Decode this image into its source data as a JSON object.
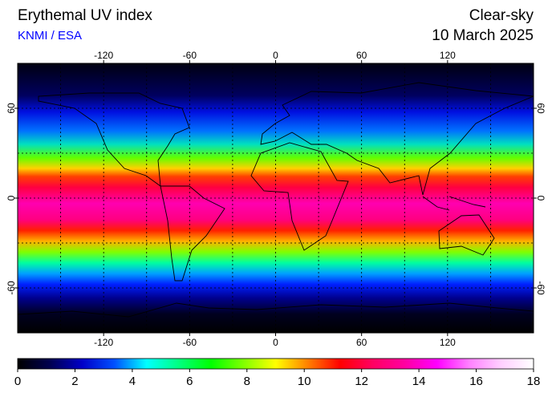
{
  "header": {
    "title": "Erythemal UV index",
    "subtitle": "KNMI / ESA",
    "mode": "Clear-sky",
    "date": "10 March 2025"
  },
  "map": {
    "lonlim": [
      -180,
      180
    ],
    "latlim": [
      -90,
      90
    ],
    "lonticks": [
      -120,
      -60,
      0,
      60,
      120
    ],
    "latticks": [
      -60,
      0,
      60
    ],
    "lon_grid": [
      -150,
      -120,
      -90,
      -60,
      -30,
      0,
      30,
      60,
      90,
      120,
      150
    ],
    "lat_grid": [
      -60,
      -30,
      0,
      30,
      60
    ]
  },
  "colorbar": {
    "lim": [
      0,
      18
    ],
    "ticks": [
      0,
      2,
      4,
      6,
      8,
      10,
      12,
      14,
      16,
      18
    ],
    "colors": [
      "#000000",
      "#000050",
      "#0000c8",
      "#0050ff",
      "#00ffff",
      "#00ff80",
      "#00ff00",
      "#80ff00",
      "#ffff00",
      "#ff8000",
      "#ff0000",
      "#ff0060",
      "#ff00a0",
      "#ff00ff",
      "#ff80ff",
      "#ffd0ff",
      "#ffffff"
    ]
  }
}
